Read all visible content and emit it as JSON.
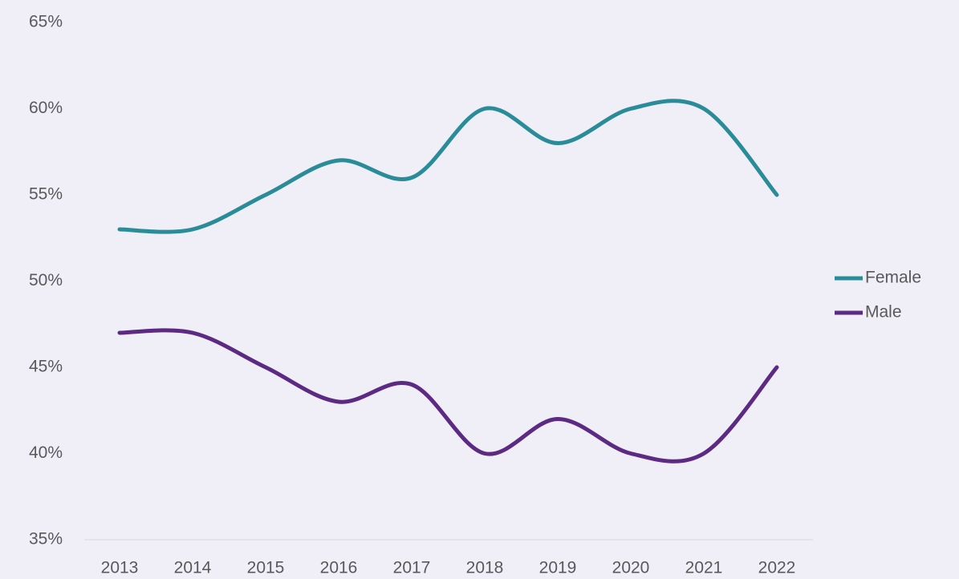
{
  "chart_data": {
    "type": "line",
    "categories": [
      "2013",
      "2014",
      "2015",
      "2016",
      "2017",
      "2018",
      "2019",
      "2020",
      "2021",
      "2022"
    ],
    "series": [
      {
        "name": "Female",
        "color": "#2b8c99",
        "values": [
          53,
          53,
          55,
          57,
          56,
          60,
          58,
          60,
          60,
          55
        ]
      },
      {
        "name": "Male",
        "color": "#5c2a83",
        "values": [
          47,
          47,
          45,
          43,
          44,
          40,
          42,
          40,
          40,
          45
        ]
      }
    ],
    "ylim": [
      35,
      65
    ],
    "yticks": [
      {
        "value": 35,
        "label": "35%"
      },
      {
        "value": 40,
        "label": "40%"
      },
      {
        "value": 45,
        "label": "45%"
      },
      {
        "value": 50,
        "label": "50%"
      },
      {
        "value": 55,
        "label": "55%"
      },
      {
        "value": 60,
        "label": "60%"
      },
      {
        "value": 65,
        "label": "65%"
      }
    ],
    "smooth": true,
    "grid": false,
    "legend": "right"
  }
}
